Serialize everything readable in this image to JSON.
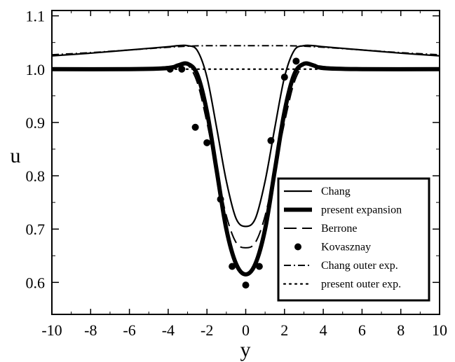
{
  "chart_data": {
    "type": "line",
    "title": "",
    "xlabel": "y",
    "ylabel": "u",
    "xlim": [
      -10,
      10
    ],
    "ylim": [
      0.54,
      1.11
    ],
    "x_ticks": [
      -10,
      -8,
      -6,
      -4,
      -2,
      0,
      2,
      4,
      6,
      8,
      10
    ],
    "x_tick_labels": [
      "-10",
      "-8",
      "-6",
      "-4",
      "-2",
      "0",
      "2",
      "4",
      "6",
      "8",
      "10"
    ],
    "y_ticks": [
      0.6,
      0.7,
      0.8,
      0.9,
      1.0,
      1.1
    ],
    "y_tick_labels": [
      "0.6",
      "0.7",
      "0.8",
      "0.9",
      "1.0",
      "1.1"
    ],
    "grid": false,
    "legend_position": "bottom-right",
    "series": [
      {
        "name": "Chang",
        "style": "solid-thin",
        "x": [
          -10,
          -8,
          -6,
          -4,
          -3.5,
          -3,
          -2.5,
          -2,
          -1.5,
          -1,
          -0.5,
          0,
          0.5,
          1,
          1.5,
          2,
          2.5,
          3,
          3.5,
          4,
          6,
          8,
          10
        ],
        "y": [
          1.025,
          1.03,
          1.036,
          1.042,
          1.044,
          1.044,
          1.035,
          0.985,
          0.89,
          0.79,
          0.72,
          0.705,
          0.72,
          0.79,
          0.89,
          0.985,
          1.035,
          1.044,
          1.044,
          1.042,
          1.036,
          1.03,
          1.025
        ]
      },
      {
        "name": "present expansion",
        "style": "solid-thick",
        "x": [
          -10,
          -6,
          -4,
          -3.5,
          -3,
          -2.5,
          -2,
          -1.5,
          -1,
          -0.5,
          0,
          0.5,
          1,
          1.5,
          2,
          2.5,
          3,
          3.5,
          4,
          6,
          10
        ],
        "y": [
          1.0,
          1.0,
          1.002,
          1.007,
          1.01,
          0.99,
          0.92,
          0.81,
          0.7,
          0.635,
          0.615,
          0.635,
          0.7,
          0.81,
          0.92,
          0.99,
          1.01,
          1.007,
          1.002,
          1.0,
          1.0
        ]
      },
      {
        "name": "Berrone",
        "style": "dashed",
        "x": [
          -10,
          -6,
          -4,
          -3.5,
          -3,
          -2.5,
          -2,
          -1.5,
          -1,
          -0.5,
          0,
          0.5,
          1,
          1.5,
          2,
          2.5,
          3,
          3.5,
          4,
          6,
          10
        ],
        "y": [
          1.0,
          1.0,
          1.005,
          1.009,
          1.008,
          0.975,
          0.9,
          0.81,
          0.725,
          0.675,
          0.665,
          0.675,
          0.725,
          0.81,
          0.9,
          0.975,
          1.008,
          1.009,
          1.005,
          1.0,
          1.0
        ]
      },
      {
        "name": "Kovasznay",
        "style": "markers",
        "x": [
          -3.9,
          -3.3,
          -2.6,
          -2.0,
          -1.3,
          -0.7,
          0,
          0.7,
          1.3,
          2.0,
          2.6
        ],
        "y": [
          1.0,
          1.0,
          0.891,
          0.862,
          0.756,
          0.63,
          0.595,
          0.63,
          0.866,
          0.985,
          1.015
        ]
      },
      {
        "name": "Chang outer exp.",
        "style": "dash-dot",
        "x": [
          -10,
          -8,
          -6,
          -4,
          -3,
          -2,
          0,
          2,
          3,
          4,
          6,
          8,
          10
        ],
        "y": [
          1.027,
          1.031,
          1.036,
          1.041,
          1.043,
          1.044,
          1.044,
          1.044,
          1.043,
          1.041,
          1.036,
          1.031,
          1.027
        ]
      },
      {
        "name": "present outer exp.",
        "style": "dotted",
        "x": [
          -10,
          10
        ],
        "y": [
          1.0,
          1.0
        ]
      }
    ]
  }
}
